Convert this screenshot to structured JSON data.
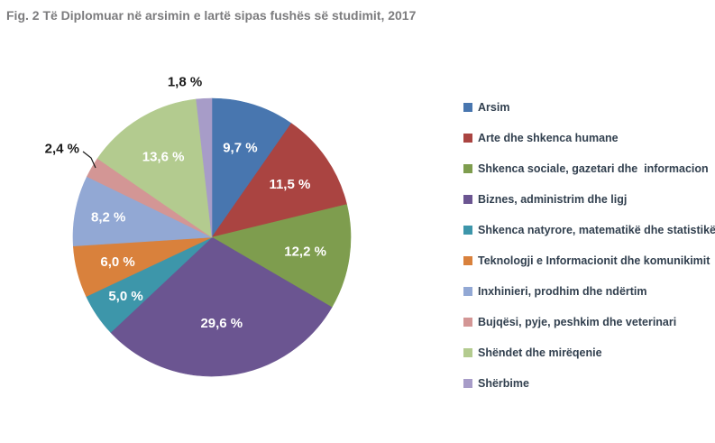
{
  "title": "Fig. 2 Të Diplomuar në arsimin e lartë sipas fushës së studimit, 2017",
  "chart_data": {
    "type": "pie",
    "title": "Fig. 2 Të Diplomuar në arsimin e lartë sipas fushës së studimit, 2017",
    "units": "%",
    "decimal_style": "comma",
    "start_angle_deg": 0,
    "direction": "clockwise",
    "legend_position": "right",
    "total": 100.0,
    "segments": [
      {
        "label": "Arsim",
        "value": 9.7,
        "value_label": "9,7 %",
        "color": "#4876AF",
        "label_placement": "inside"
      },
      {
        "label": "Arte dhe shkenca humane",
        "value": 11.5,
        "value_label": "11,5 %",
        "color": "#AA4441",
        "label_placement": "inside"
      },
      {
        "label": "Shkenca sociale, gazetari dhe  informacion",
        "value": 12.2,
        "value_label": "12,2 %",
        "color": "#7E9D4E",
        "label_placement": "inside"
      },
      {
        "label": "Biznes, administrim dhe ligj",
        "value": 29.6,
        "value_label": "29,6 %",
        "color": "#6B5591",
        "label_placement": "inside"
      },
      {
        "label": "Shkenca natyrore, matematikë dhe statistikë",
        "value": 5.0,
        "value_label": "5,0 %",
        "color": "#3D96AA",
        "label_placement": "inside"
      },
      {
        "label": "Teknologji e Informacionit dhe komunikimit",
        "value": 6.0,
        "value_label": "6,0 %",
        "color": "#D9813C",
        "label_placement": "inside"
      },
      {
        "label": "Inxhinieri, prodhim dhe ndërtim",
        "value": 8.2,
        "value_label": "8,2 %",
        "color": "#92A8D4",
        "label_placement": "inside"
      },
      {
        "label": "Bujqësi, pyje, peshkim dhe veterinari",
        "value": 2.4,
        "value_label": "2,4 %",
        "color": "#D39695",
        "label_placement": "outside-leader"
      },
      {
        "label": "Shëndet dhe mirëqenie",
        "value": 13.6,
        "value_label": "13,6 %",
        "color": "#B3CB8F",
        "label_placement": "inside"
      },
      {
        "label": "Shërbime",
        "value": 1.8,
        "value_label": "1,8 %",
        "color": "#A79CC8",
        "label_placement": "outside"
      }
    ]
  }
}
